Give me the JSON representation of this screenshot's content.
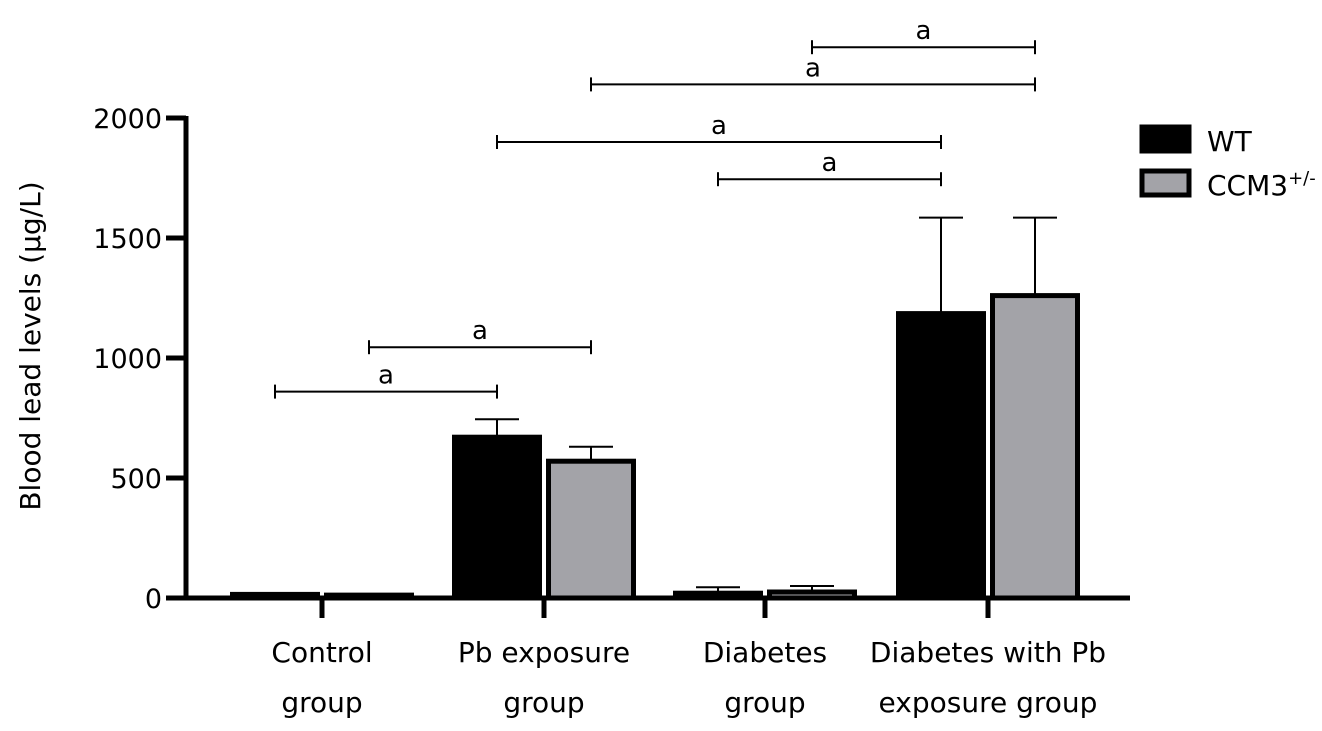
{
  "chart_data": {
    "type": "bar",
    "title": "",
    "xlabel": "",
    "ylabel": "Blood lead levels (µg/L)",
    "ylim": [
      0,
      2000
    ],
    "yticks": [
      0,
      500,
      1000,
      1500,
      2000
    ],
    "ytick_labels": [
      "0",
      "500",
      "1000",
      "1500",
      "2000"
    ],
    "grid": false,
    "legend_position": "top-right",
    "categories": [
      [
        "Control",
        "group"
      ],
      [
        "Pb exposure",
        "group"
      ],
      [
        "Diabetes",
        "group"
      ],
      [
        "Diabetes with Pb",
        "exposure group"
      ]
    ],
    "series": [
      {
        "name": "WT",
        "color": "#000000",
        "values": [
          15,
          670,
          20,
          1185
        ],
        "error": [
          5,
          75,
          25,
          400
        ]
      },
      {
        "name": "CCM3",
        "name_superscript": "+/-",
        "color": "#a3a3a8",
        "values": [
          12,
          570,
          25,
          1260
        ],
        "error": [
          4,
          60,
          25,
          325
        ]
      }
    ],
    "significance": [
      {
        "label": "a",
        "from": [
          0,
          0
        ],
        "to": [
          1,
          0
        ],
        "y": 860
      },
      {
        "label": "a",
        "from": [
          0,
          1
        ],
        "to": [
          1,
          1
        ],
        "y": 1045
      },
      {
        "label": "a",
        "from": [
          2,
          0
        ],
        "to": [
          3,
          0
        ],
        "y": 1745
      },
      {
        "label": "a",
        "from": [
          1,
          0
        ],
        "to": [
          3,
          0
        ],
        "y": 1900
      },
      {
        "label": "a",
        "from": [
          1,
          1
        ],
        "to": [
          3,
          1
        ],
        "y": 2140
      },
      {
        "label": "a",
        "from": [
          2,
          1
        ],
        "to": [
          3,
          1
        ],
        "y": 2295
      }
    ]
  }
}
